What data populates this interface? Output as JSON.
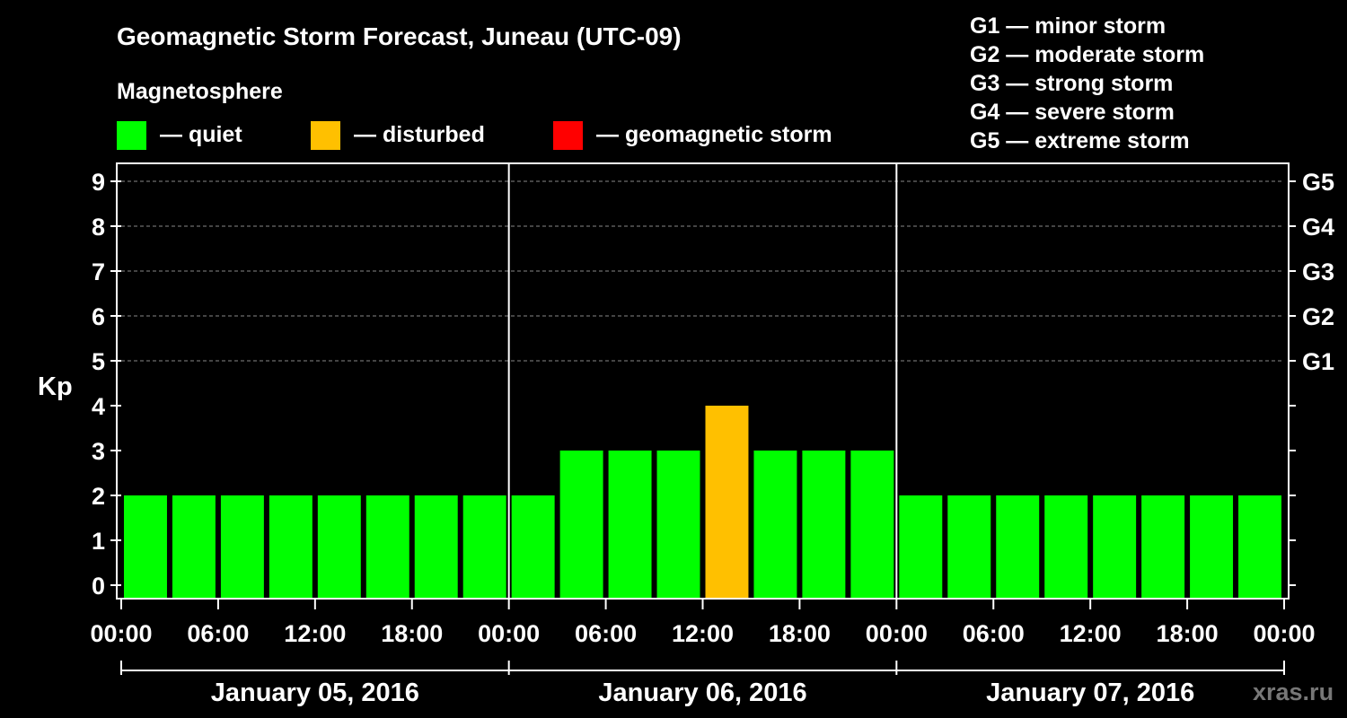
{
  "title": "Geomagnetic Storm Forecast, Juneau (UTC-09)",
  "legend": {
    "heading": "Magnetosphere",
    "items": [
      {
        "label": "— quiet",
        "color": "#00ff00"
      },
      {
        "label": "— disturbed",
        "color": "#ffc000"
      },
      {
        "label": "— geomagnetic storm",
        "color": "#ff0000"
      }
    ]
  },
  "storm_scale": [
    "G1 — minor storm",
    "G2 — moderate storm",
    "G3 — strong storm",
    "G4 — severe storm",
    "G5 — extreme storm"
  ],
  "watermark": "xras.ru",
  "chart_data": {
    "type": "bar",
    "ylabel": "Kp",
    "ylim": [
      0,
      9
    ],
    "yticks": [
      "0",
      "1",
      "2",
      "3",
      "4",
      "5",
      "6",
      "7",
      "8",
      "9"
    ],
    "right_ticks": [
      {
        "kp": 5,
        "label": "G1"
      },
      {
        "kp": 6,
        "label": "G2"
      },
      {
        "kp": 7,
        "label": "G3"
      },
      {
        "kp": 8,
        "label": "G4"
      },
      {
        "kp": 9,
        "label": "G5"
      }
    ],
    "grid": "dashed horizontal at Kp 5-9",
    "xtick_labels": [
      "00:00",
      "06:00",
      "12:00",
      "18:00",
      "00:00",
      "06:00",
      "12:00",
      "18:00",
      "00:00",
      "06:00",
      "12:00",
      "18:00",
      "00:00"
    ],
    "days": [
      "January 05, 2016",
      "January 06, 2016",
      "January 07, 2016"
    ],
    "interval_hours": 3,
    "values": [
      2,
      2,
      2,
      2,
      2,
      2,
      2,
      2,
      2,
      3,
      3,
      3,
      4,
      3,
      3,
      3,
      2,
      2,
      2,
      2,
      2,
      2,
      2,
      2
    ],
    "levels": [
      "quiet",
      "quiet",
      "quiet",
      "quiet",
      "quiet",
      "quiet",
      "quiet",
      "quiet",
      "quiet",
      "quiet",
      "quiet",
      "quiet",
      "disturbed",
      "quiet",
      "quiet",
      "quiet",
      "quiet",
      "quiet",
      "quiet",
      "quiet",
      "quiet",
      "quiet",
      "quiet",
      "quiet"
    ],
    "level_colors": {
      "quiet": "#00ff00",
      "disturbed": "#ffc000",
      "storm": "#ff0000"
    }
  }
}
